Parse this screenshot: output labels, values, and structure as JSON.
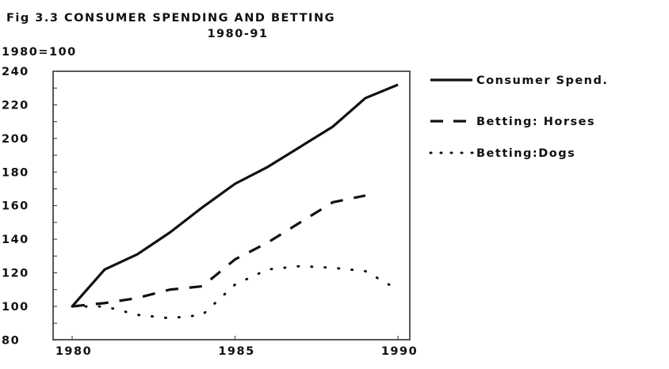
{
  "chart_data": {
    "type": "line",
    "title": "Fig 3.3 CONSUMER SPENDING AND BETTING",
    "subtitle": "1980-91",
    "ylabel": "1980=100",
    "xlabel": "",
    "xlim": [
      1980,
      1990
    ],
    "ylim": [
      80,
      240
    ],
    "x_ticks": [
      "1980",
      "1985",
      "1990"
    ],
    "y_ticks": [
      "80",
      "100",
      "120",
      "140",
      "160",
      "180",
      "200",
      "220",
      "240"
    ],
    "grid": false,
    "legend_position": "right",
    "series": [
      {
        "name": "Consumer Spend.",
        "style": "solid",
        "x": [
          1980,
          1981,
          1982,
          1983,
          1984,
          1985,
          1986,
          1987,
          1988,
          1989,
          1990
        ],
        "values": [
          100,
          122,
          131,
          144,
          159,
          173,
          183,
          195,
          207,
          224,
          232
        ]
      },
      {
        "name": "Betting: Horses",
        "style": "dashed",
        "x": [
          1980,
          1981,
          1982,
          1983,
          1984,
          1985,
          1986,
          1987,
          1988,
          1989
        ],
        "values": [
          100,
          102,
          105,
          110,
          112,
          128,
          138,
          150,
          162,
          166
        ]
      },
      {
        "name": "Betting:Dogs",
        "style": "dotted",
        "x": [
          1980,
          1981,
          1982,
          1983,
          1984,
          1985,
          1986,
          1987,
          1988,
          1989,
          1990
        ],
        "values": [
          100,
          100,
          95,
          93,
          95,
          113,
          122,
          124,
          123,
          121,
          110
        ]
      }
    ],
    "colors": {
      "line": "#111111",
      "background": "#ffffff"
    }
  }
}
